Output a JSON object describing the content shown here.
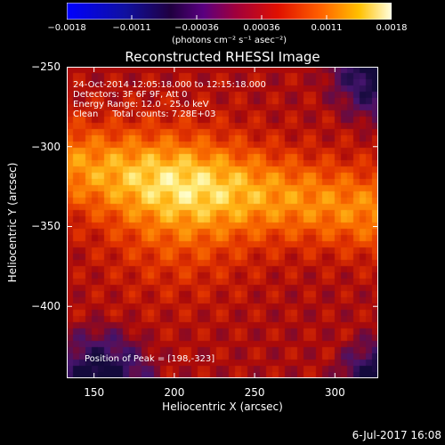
{
  "chart_data": {
    "type": "heatmap",
    "title": "Reconstructed RHESSI Image",
    "xlabel": "Heliocentric X (arcsec)",
    "ylabel": "Heliocentric Y (arcsec)",
    "xlim": [
      133,
      327
    ],
    "ylim": [
      -445,
      -250
    ],
    "x_ticks": [
      150,
      200,
      250,
      300
    ],
    "y_ticks": [
      -250,
      -300,
      -350,
      -400
    ],
    "colorbar": {
      "ticks": [
        "-0.0018",
        "-0.0011",
        "-0.00036",
        "0.00036",
        "0.0011",
        "0.0018"
      ],
      "range": [
        -0.0018,
        0.0018
      ],
      "unit_label": "(photons cm⁻² s⁻¹ asec⁻²)"
    },
    "annotations": {
      "time_range": "24-Oct-2014 12:05:18.000 to 12:15:18.000",
      "detectors": "Detectors: 3F 6F 9F, Att 0",
      "energy_range": "Energy Range: 12.0 - 25.0 keV",
      "method": "Clean     Total counts: 7.28E+03",
      "peak": "Position of Peak = [198,-323]"
    },
    "peak_position": [
      198,
      -323
    ]
  },
  "footer": {
    "date": "6-Jul-2017 16:08"
  }
}
